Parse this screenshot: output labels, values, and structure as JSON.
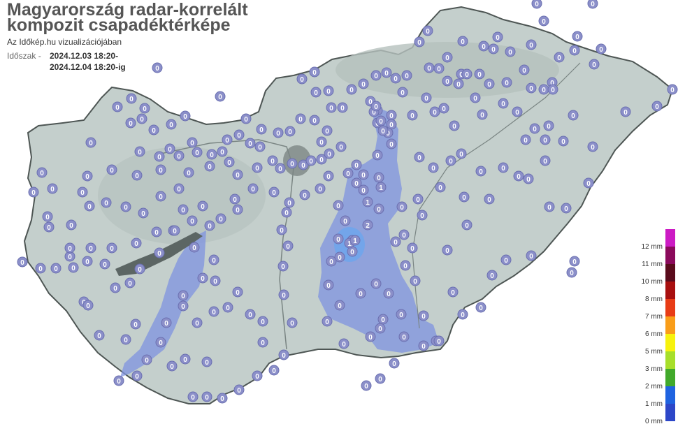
{
  "header": {
    "title": "Magyarország radar-korrelált kompozit csapadéktérképe",
    "subtitle": "Az Időkép.hu vizualizációjában",
    "period_label": "Időszak -",
    "period_from": "2024.12.03 18:20-",
    "period_to": "2024.12.04 18:20-ig"
  },
  "legend": {
    "items": [
      {
        "label": "12 mm",
        "color": "#cc1bc4"
      },
      {
        "label": "11 mm",
        "color": "#8b0a5c"
      },
      {
        "label": "10 mm",
        "color": "#5a0b1c"
      },
      {
        "label": "8 mm",
        "color": "#a80f0f"
      },
      {
        "label": "7 mm",
        "color": "#e83c16"
      },
      {
        "label": "6 mm",
        "color": "#f99d19"
      },
      {
        "label": "5 mm",
        "color": "#f7f20d"
      },
      {
        "label": "3 mm",
        "color": "#a7df2a"
      },
      {
        "label": "2 mm",
        "color": "#41a92b"
      },
      {
        "label": "1 mm",
        "color": "#1f63e0"
      },
      {
        "label": "0 mm",
        "color": "#2d47c8"
      }
    ]
  },
  "colors": {
    "land": "#c4cfcc",
    "border": "#4e5654",
    "rain_light": "#7f93e0",
    "rain_medium": "#6fa6ec",
    "lake": "#5c6664",
    "station_fill": "#8b8fc9",
    "station_text": "#ffffff"
  },
  "stations": {
    "zero_label": "0",
    "one_label": "1",
    "two_label": "2"
  }
}
